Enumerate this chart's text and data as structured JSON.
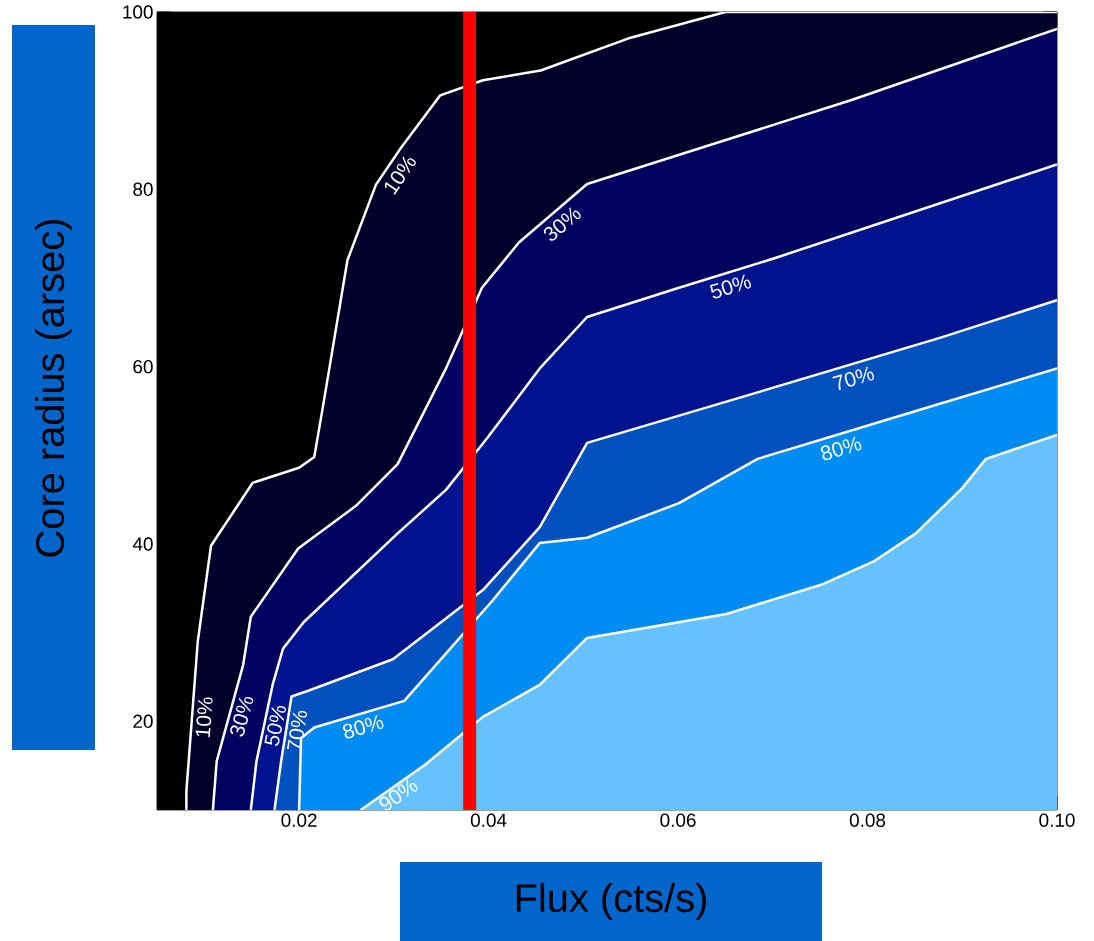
{
  "chart_data": {
    "type": "area",
    "xlabel": "Flux (cts/s)",
    "ylabel": "Core radius (arsec)",
    "xlim": [
      0.005,
      0.1
    ],
    "ylim": [
      10,
      100
    ],
    "xticks": [
      0.02,
      0.04,
      0.06,
      0.08,
      {
        "value": 0.1,
        "label": "0.10"
      }
    ],
    "yticks": [
      20,
      40,
      60,
      80,
      100
    ],
    "grid": false,
    "series": [
      {
        "name": "10%",
        "color": "#000028",
        "x": [
          0.0081,
          0.0081,
          0.0093,
          0.0107,
          0.0151,
          0.02,
          0.0216,
          0.0228,
          0.0251,
          0.0281,
          0.0307,
          0.0349,
          0.0394,
          0.0455,
          0.055,
          0.065,
          0.1
        ],
        "values": [
          10,
          12.1,
          29,
          39.8,
          46.9,
          48.6,
          49.8,
          57.3,
          72,
          80.5,
          84.6,
          90.6,
          92.3,
          93.4,
          97.1,
          100,
          100
        ]
      },
      {
        "name": "30%",
        "color": "#000060",
        "x": [
          0.0109,
          0.0113,
          0.0141,
          0.0149,
          0.0199,
          0.026,
          0.0304,
          0.0355,
          0.0393,
          0.0432,
          0.0504,
          0.0784,
          0.1
        ],
        "values": [
          10,
          15.5,
          26.4,
          31.8,
          39.5,
          44.3,
          49,
          59.8,
          68.9,
          74,
          80.6,
          90.1,
          98.1
        ]
      },
      {
        "name": "50%",
        "color": "#00138f",
        "x": [
          0.0149,
          0.0155,
          0.0172,
          0.0183,
          0.0205,
          0.0304,
          0.0355,
          0.0399,
          0.0454,
          0.0504,
          0.0601,
          0.0701,
          0.1
        ],
        "values": [
          10,
          15.5,
          24.1,
          28.2,
          31.2,
          41.2,
          46.1,
          52,
          59.8,
          65.6,
          68.9,
          72.2,
          82.8
        ]
      },
      {
        "name": "70%",
        "color": "#0050c0",
        "x": [
          0.0174,
          0.0181,
          0.0192,
          0.0211,
          0.0299,
          0.0394,
          0.0454,
          0.0504,
          0.0684,
          0.0878,
          0.1
        ],
        "values": [
          10,
          15.5,
          22.8,
          23.5,
          27,
          34.8,
          41.9,
          51.4,
          57.1,
          63.3,
          67.5
        ]
      },
      {
        "name": "80%",
        "color": "#008cf2",
        "x": [
          0.02,
          0.0202,
          0.0216,
          0.0311,
          0.0404,
          0.0454,
          0.0504,
          0.0601,
          0.0684,
          0.0851,
          0.1
        ],
        "values": [
          10,
          18.1,
          19.3,
          22.3,
          33.6,
          40.1,
          40.7,
          44.6,
          49.6,
          55,
          59.8
        ]
      },
      {
        "name": "90%",
        "color": "#66c2fe",
        "x": [
          0.0265,
          0.0333,
          0.0394,
          0.0454,
          0.0504,
          0.0651,
          0.0751,
          0.0806,
          0.0851,
          0.09,
          0.0925,
          0.1
        ],
        "values": [
          10,
          15.1,
          20.5,
          24.1,
          29.4,
          32.1,
          35.4,
          38,
          41.2,
          46.3,
          49.6,
          52.3
        ]
      }
    ],
    "ref_lines": [
      {
        "axis": "x",
        "value": 0.038,
        "color": "#ff0000"
      }
    ]
  }
}
